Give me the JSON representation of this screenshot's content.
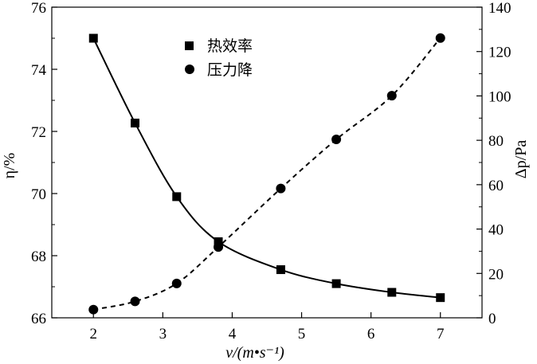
{
  "chart_data": {
    "type": "line",
    "x": [
      2,
      2.6,
      3.2,
      3.8,
      4.7,
      5.5,
      6.3,
      7
    ],
    "xlabel": "v/(m•s⁻¹)",
    "xlim": [
      1.4,
      7.6
    ],
    "xticks": [
      "2",
      "3",
      "4",
      "5",
      "6",
      "7"
    ],
    "ylabel_left": "η/%",
    "ylim_left": [
      66,
      76
    ],
    "yticks_left": [
      "66",
      "68",
      "70",
      "72",
      "74",
      "76"
    ],
    "ylabel_right": "Δp/Pa",
    "ylim_right": [
      0,
      140
    ],
    "yticks_right": [
      "0",
      "20",
      "40",
      "60",
      "80",
      "100",
      "120",
      "140"
    ],
    "legend_position": "top-center",
    "series": [
      {
        "name": "热效率",
        "axis": "left",
        "marker": "square",
        "line_style": "solid",
        "values": [
          75.0,
          72.27,
          69.9,
          68.45,
          67.55,
          67.1,
          66.82,
          66.65
        ]
      },
      {
        "name": "压力降",
        "axis": "right",
        "marker": "circle",
        "line_style": "dashed",
        "values": [
          3.7,
          7.4,
          15.5,
          31.9,
          58.3,
          80.4,
          100.1,
          126.1
        ]
      }
    ]
  }
}
